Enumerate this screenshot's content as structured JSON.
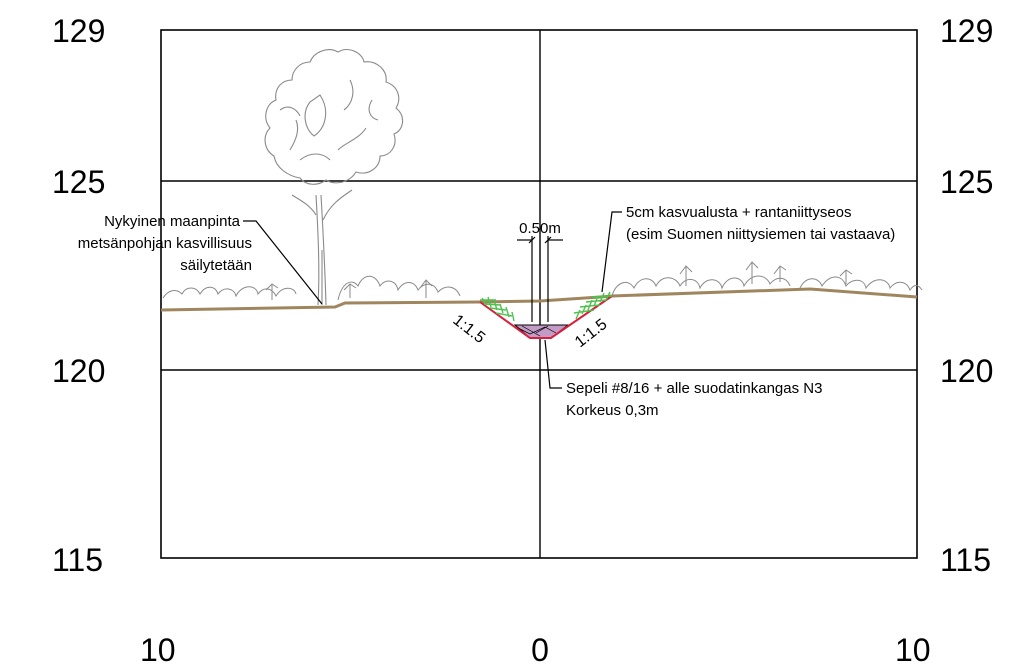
{
  "elevation_labels": {
    "left": [
      "129",
      "125",
      "120",
      "115"
    ],
    "right": [
      "129",
      "125",
      "120",
      "115"
    ]
  },
  "distance_labels": [
    "10",
    "0",
    "10"
  ],
  "dimension": {
    "width_label": "0.50m"
  },
  "slopes": {
    "left": "1:1.5",
    "right": "1:1.5"
  },
  "annotations": {
    "existing_ground": {
      "lines": [
        "Nykyinen maanpinta",
        "metsänpohjan kasvillisuus",
        "säilytetään"
      ]
    },
    "topsoil": {
      "lines": [
        "5cm kasvualusta + rantaniittyseos",
        "(esim Suomen niittysiemen tai vastaava)"
      ]
    },
    "gravel": {
      "lines": [
        "Sepeli #8/16 + alle suodatinkangas N3",
        "Korkeus 0,3m"
      ]
    }
  },
  "colors": {
    "ground": "#a0865f",
    "grass": "#4cc34c",
    "gravel_fill": "#c39bc6",
    "ditch_lining": "#d8203c",
    "vegetation": "#8a8a8a"
  }
}
